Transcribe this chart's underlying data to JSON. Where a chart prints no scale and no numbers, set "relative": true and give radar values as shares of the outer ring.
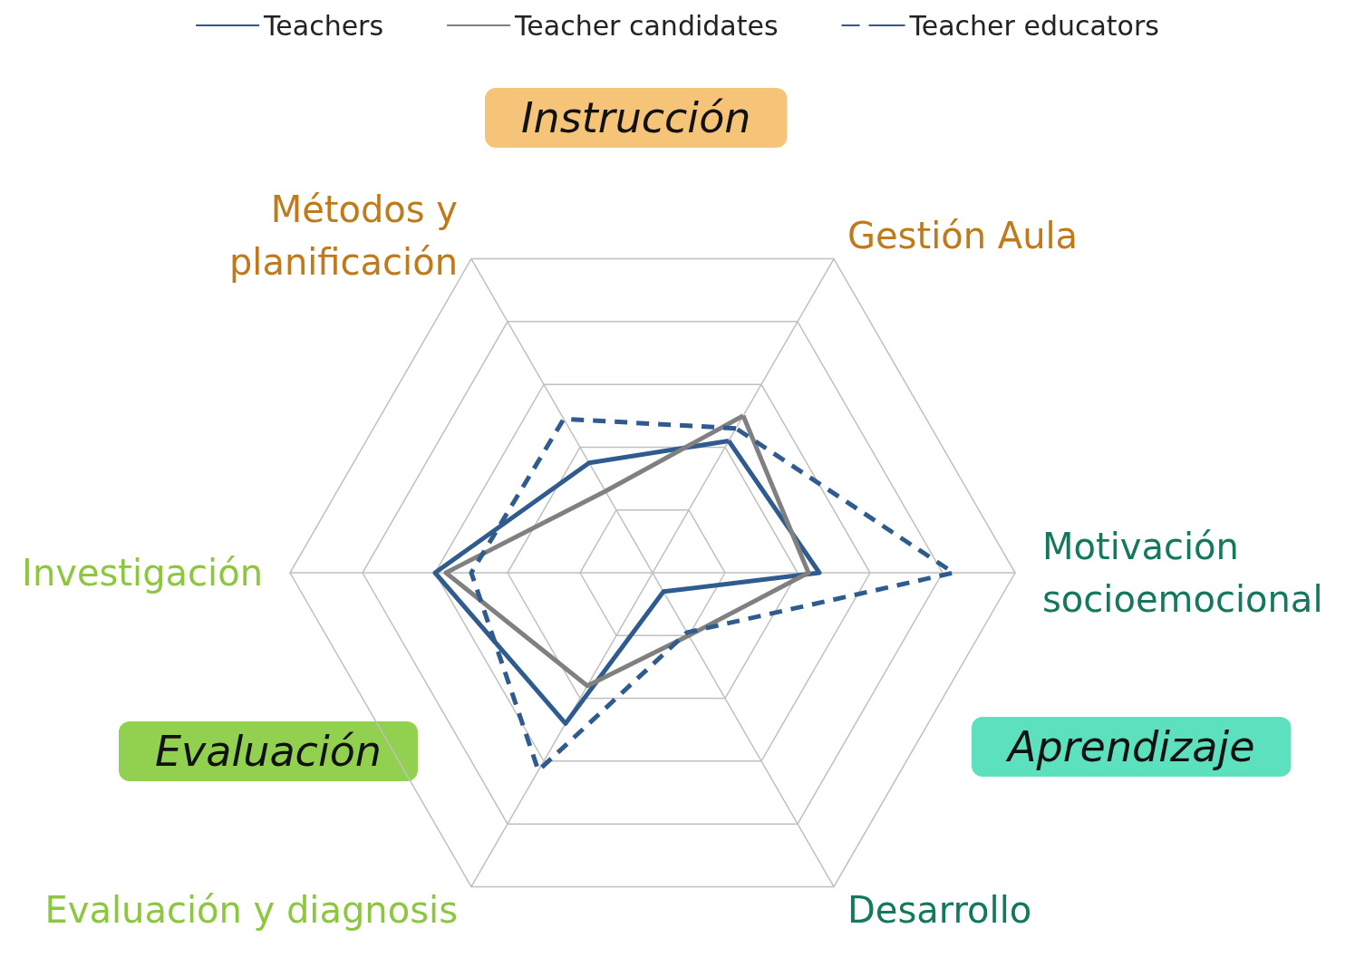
{
  "chart_data": {
    "type": "radar",
    "relative": true,
    "categories": [
      "Gestión Aula",
      "Motivación socioemocional",
      "Desarrollo",
      "Evaluación y diagnosis",
      "Investigación",
      "Métodos y planificación"
    ],
    "series": [
      {
        "name": "Teachers",
        "color": "#2f5b8e",
        "line_style": "solid",
        "values": [
          0.42,
          0.46,
          0.06,
          0.48,
          0.6,
          0.35
        ]
      },
      {
        "name": "Teacher candidates",
        "color": "#808080",
        "line_style": "solid",
        "values": [
          0.5,
          0.43,
          0.2,
          0.36,
          0.57,
          0.26
        ]
      },
      {
        "name": "Teacher educators",
        "color": "#2f5b8e",
        "line_style": "dashed",
        "values": [
          0.46,
          0.83,
          0.19,
          0.63,
          0.5,
          0.49
        ]
      }
    ],
    "legend": "top",
    "marker": "none",
    "grid": true,
    "annotations": [
      "Instrucción",
      "Aprendizaje",
      "Evaluación"
    ]
  }
}
